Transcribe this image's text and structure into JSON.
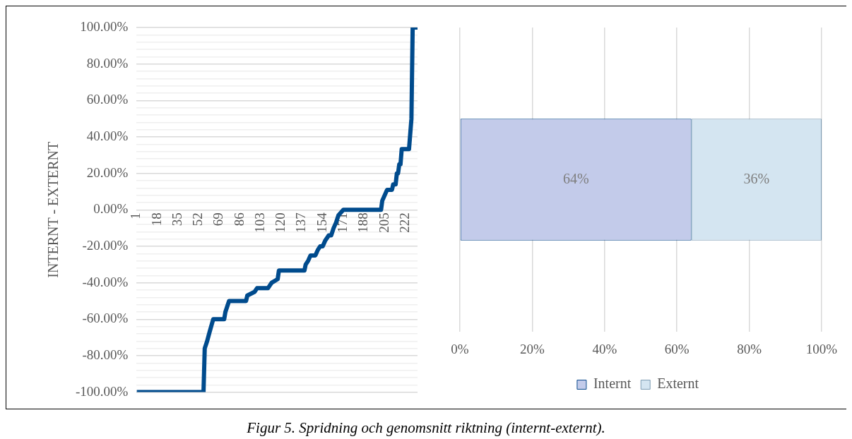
{
  "chart_data": [
    {
      "type": "line",
      "ylabel": "INTERNT - EXTERNT",
      "color": "#004b8d",
      "marker": "none",
      "grid": "y",
      "x": [
        1,
        56,
        57,
        59,
        61,
        64,
        73,
        74,
        77,
        91,
        92,
        98,
        100,
        109,
        112,
        117,
        118,
        139,
        140,
        142,
        144,
        148,
        150,
        152,
        154,
        156,
        159,
        161,
        163,
        165,
        167,
        171,
        202,
        203,
        205,
        207,
        211,
        212,
        214,
        215,
        216,
        217,
        218,
        219,
        225,
        227,
        228,
        232
      ],
      "values": [
        -100,
        -100,
        -76,
        -72,
        -67,
        -60,
        -60,
        -56,
        -50,
        -50,
        -47,
        -45,
        -43,
        -43,
        -40,
        -38,
        -33.3,
        -33.3,
        -30,
        -28,
        -25,
        -25,
        -22,
        -20,
        -20,
        -17,
        -14,
        -14,
        -10,
        -7,
        -3,
        0,
        0,
        5,
        8,
        11,
        11,
        14,
        14,
        20,
        20,
        25,
        25,
        33.3,
        33.3,
        50,
        100,
        100
      ],
      "xlim": [
        1,
        232
      ],
      "xticks": [
        1,
        18,
        35,
        52,
        69,
        86,
        103,
        120,
        137,
        154,
        171,
        188,
        205,
        222
      ],
      "ylim": [
        -100,
        100
      ],
      "yticks": [
        {
          "value": -100,
          "label": "-100.00%"
        },
        {
          "value": -96,
          "label": null
        },
        {
          "value": -92,
          "label": null
        },
        {
          "value": -88,
          "label": null
        },
        {
          "value": -84,
          "label": null
        },
        {
          "value": -80,
          "label": "-80.00%"
        },
        {
          "value": -76,
          "label": null
        },
        {
          "value": -72,
          "label": null
        },
        {
          "value": -68,
          "label": null
        },
        {
          "value": -64,
          "label": null
        },
        {
          "value": -60,
          "label": "-60.00%"
        },
        {
          "value": -56,
          "label": null
        },
        {
          "value": -52,
          "label": null
        },
        {
          "value": -48,
          "label": null
        },
        {
          "value": -44,
          "label": null
        },
        {
          "value": -40,
          "label": "-40.00%"
        },
        {
          "value": -36,
          "label": null
        },
        {
          "value": -32,
          "label": null
        },
        {
          "value": -28,
          "label": null
        },
        {
          "value": -24,
          "label": null
        },
        {
          "value": -20,
          "label": "-20.00%"
        },
        {
          "value": -16,
          "label": null
        },
        {
          "value": -12,
          "label": null
        },
        {
          "value": -8,
          "label": null
        },
        {
          "value": -4,
          "label": null
        },
        {
          "value": 0,
          "label": "0.00%"
        },
        {
          "value": 4,
          "label": null
        },
        {
          "value": 8,
          "label": null
        },
        {
          "value": 12,
          "label": null
        },
        {
          "value": 16,
          "label": null
        },
        {
          "value": 20,
          "label": "20.00%"
        },
        {
          "value": 24,
          "label": null
        },
        {
          "value": 28,
          "label": null
        },
        {
          "value": 32,
          "label": null
        },
        {
          "value": 36,
          "label": null
        },
        {
          "value": 40,
          "label": "40.00%"
        },
        {
          "value": 44,
          "label": null
        },
        {
          "value": 48,
          "label": null
        },
        {
          "value": 52,
          "label": null
        },
        {
          "value": 56,
          "label": null
        },
        {
          "value": 60,
          "label": "60.00%"
        },
        {
          "value": 64,
          "label": null
        },
        {
          "value": 68,
          "label": null
        },
        {
          "value": 72,
          "label": null
        },
        {
          "value": 76,
          "label": null
        },
        {
          "value": 80,
          "label": "80.00%"
        },
        {
          "value": 84,
          "label": null
        },
        {
          "value": 88,
          "label": null
        },
        {
          "value": 92,
          "label": null
        },
        {
          "value": 96,
          "label": null
        },
        {
          "value": 100,
          "label": "100.00%"
        }
      ],
      "annotations": [
        "Figur 5. Spridning och genomsnitt riktning (internt-externt)."
      ]
    },
    {
      "type": "bar",
      "orientation": "horizontal",
      "stacked": true,
      "categories": [
        null
      ],
      "series": [
        {
          "name": "Internt",
          "color": "#c3cbea",
          "values": [
            64
          ],
          "value_labels": [
            "64%"
          ]
        },
        {
          "name": "Externt",
          "color": "#d4e5f1",
          "values": [
            36
          ],
          "value_labels": [
            "36%"
          ]
        }
      ],
      "xlim": [
        0,
        100
      ],
      "xticks": [
        {
          "value": 0,
          "label": "0%"
        },
        {
          "value": 20,
          "label": "20%"
        },
        {
          "value": 40,
          "label": "40%"
        },
        {
          "value": 60,
          "label": "60%"
        },
        {
          "value": 80,
          "label": "80%"
        },
        {
          "value": 100,
          "label": "100%"
        }
      ],
      "grid": "x",
      "legend": "bottom"
    }
  ]
}
